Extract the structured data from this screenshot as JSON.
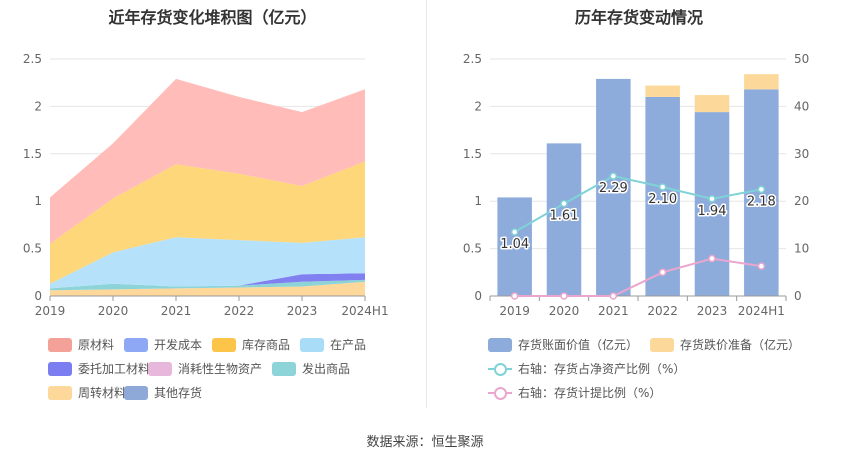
{
  "source_label": "数据来源：恒生聚源",
  "chart_data": [
    {
      "type": "area",
      "title": "近年存货变化堆积图（亿元）",
      "categories": [
        "2019",
        "2020",
        "2021",
        "2022",
        "2023",
        "2024H1"
      ],
      "ylim": [
        0,
        2.5
      ],
      "yticks": [
        "0",
        "0.5",
        "1",
        "1.5",
        "2",
        "2.5"
      ],
      "stacked": true,
      "grid": true,
      "legend_position": "bottom",
      "series": [
        {
          "name": "周转材料",
          "color": "#fdd89a",
          "values": [
            0.06,
            0.07,
            0.08,
            0.09,
            0.1,
            0.15
          ]
        },
        {
          "name": "发出商品",
          "color": "#8cd4d8",
          "values": [
            0.02,
            0.06,
            0.02,
            0.02,
            0.05,
            0.02
          ]
        },
        {
          "name": "委托加工材料",
          "color": "#8080f0",
          "values": [
            0.0,
            0.0,
            0.0,
            0.0,
            0.08,
            0.07
          ]
        },
        {
          "name": "在产品",
          "color": "#b5e2fa",
          "values": [
            0.05,
            0.33,
            0.52,
            0.48,
            0.33,
            0.38
          ]
        },
        {
          "name": "库存商品",
          "color": "#fed77a",
          "values": [
            0.42,
            0.57,
            0.77,
            0.7,
            0.6,
            0.8
          ]
        },
        {
          "name": "原材料",
          "color": "#ffbcb8",
          "values": [
            0.49,
            0.58,
            0.9,
            0.81,
            0.78,
            0.76
          ]
        }
      ],
      "legend": [
        {
          "name": "原材料",
          "color": "#f4a19a"
        },
        {
          "name": "开发成本",
          "color": "#8fa8f5"
        },
        {
          "name": "库存商品",
          "color": "#fcc54a"
        },
        {
          "name": "在产品",
          "color": "#a8dcf7"
        },
        {
          "name": "委托加工材料",
          "color": "#7a7ef0"
        },
        {
          "name": "消耗性生物资产",
          "color": "#e8b8dc"
        },
        {
          "name": "发出商品",
          "color": "#8cd4d8"
        },
        {
          "name": "周转材料",
          "color": "#fdd89a"
        },
        {
          "name": "其他存货",
          "color": "#8ea8d8"
        }
      ]
    },
    {
      "type": "bar",
      "title": "历年存货变动情况",
      "categories": [
        "2019",
        "2020",
        "2021",
        "2022",
        "2023",
        "2024H1"
      ],
      "ylim": [
        0,
        2.5
      ],
      "yticks": [
        "0",
        "0.5",
        "1",
        "1.5",
        "2",
        "2.5"
      ],
      "y2lim": [
        0,
        50
      ],
      "y2ticks": [
        "0",
        "10",
        "20",
        "30",
        "40",
        "50"
      ],
      "series": [
        {
          "name": "存货账面价值（亿元）",
          "type": "bar",
          "color": "#8eacdb",
          "values": [
            1.04,
            1.61,
            2.29,
            2.1,
            1.94,
            2.18
          ],
          "labels": [
            "1.04",
            "1.61",
            "2.29",
            "2.10",
            "1.94",
            "2.18"
          ]
        },
        {
          "name": "存货跌价准备（亿元）",
          "type": "bar",
          "color": "#fcd99a",
          "values": [
            0,
            0,
            0,
            0.12,
            0.18,
            0.16
          ]
        },
        {
          "name": "右轴：存货占净资产比例（%）",
          "type": "line",
          "axis": "right",
          "color": "#7fd3d6",
          "values": [
            13.5,
            19.5,
            25.3,
            23.0,
            20.5,
            22.5
          ]
        },
        {
          "name": "右轴：存货计提比例（%）",
          "type": "line",
          "axis": "right",
          "color": "#eaa6cf",
          "values": [
            0,
            0,
            0,
            5.0,
            7.9,
            6.3
          ]
        }
      ]
    }
  ]
}
